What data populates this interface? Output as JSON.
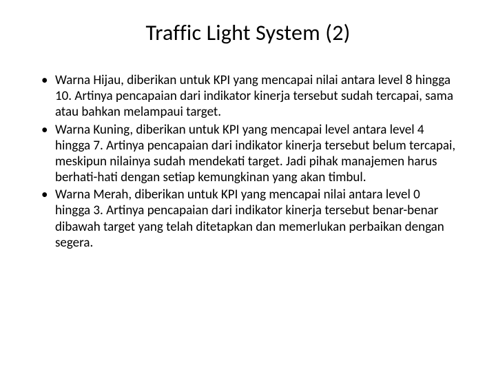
{
  "slide": {
    "title": "Traffic Light System (2)",
    "bullets": [
      "Warna Hijau, diberikan untuk KPI yang mencapai nilai antara level 8 hingga 10. Artinya pencapaian dari indikator kinerja tersebut sudah tercapai, sama atau bahkan melampaui target.",
      "Warna Kuning, diberikan untuk KPI yang mencapai level antara level 4 hingga 7. Artinya pencapaian dari indikator kinerja tersebut belum tercapai, meskipun nilainya sudah mendekati target. Jadi pihak manajemen harus berhati-hati dengan setiap kemungkinan yang akan timbul.",
      "Warna Merah, diberikan untuk KPI yang mencapai nilai antara level 0 hingga 3. Artinya pencapaian dari indikator kinerja tersebut benar-benar dibawah target yang telah ditetapkan dan memerlukan perbaikan dengan segera."
    ]
  },
  "styling": {
    "background_color": "#ffffff",
    "text_color": "#000000",
    "title_fontsize": 32,
    "body_fontsize": 19,
    "font_family": "Calibri",
    "slide_width": 720,
    "slide_height": 540
  }
}
